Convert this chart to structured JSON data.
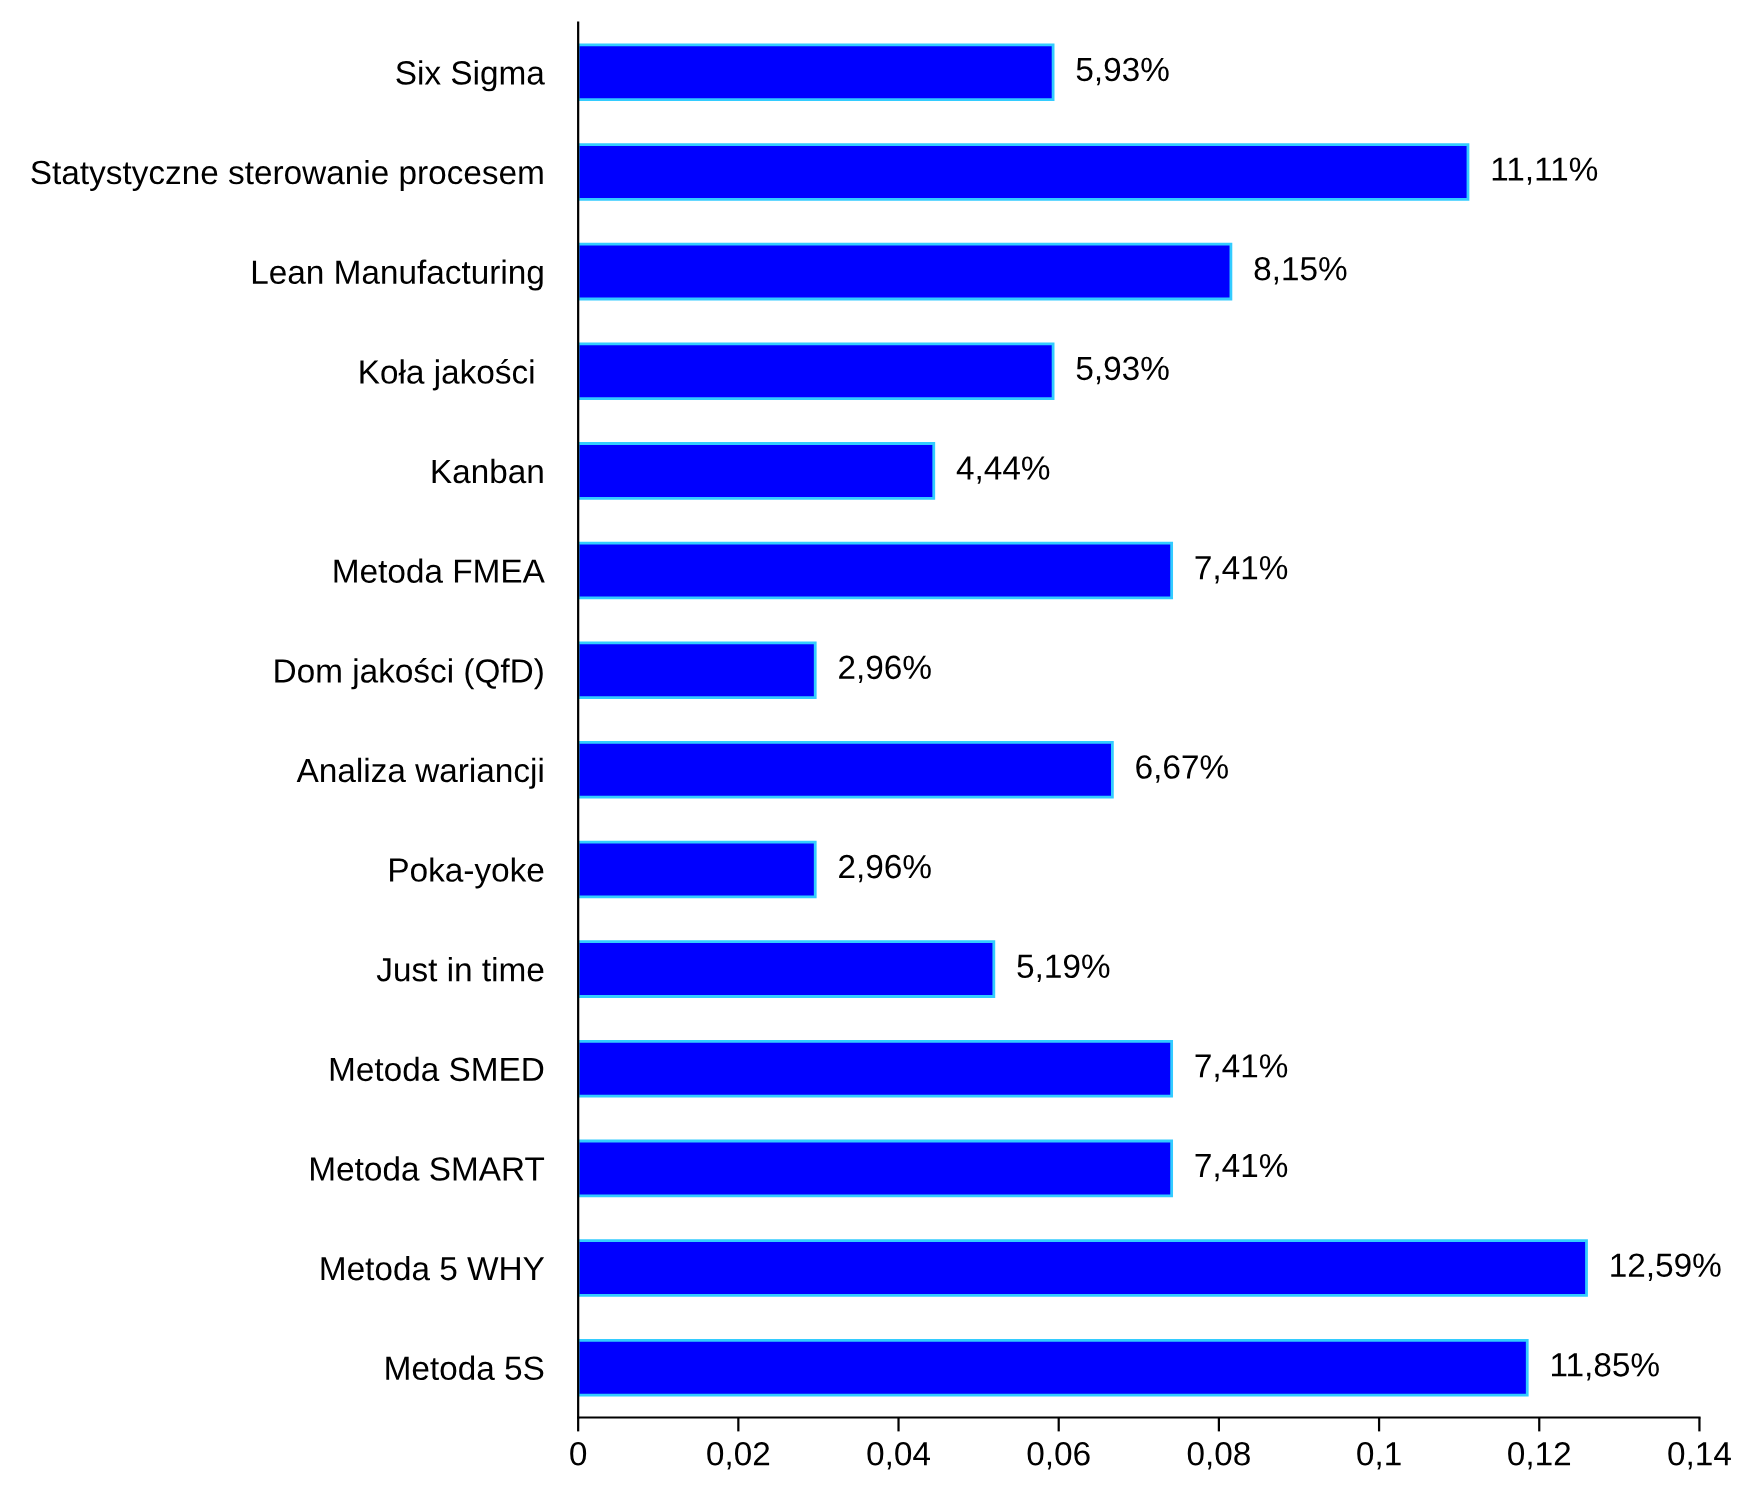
{
  "chart_data": {
    "type": "bar",
    "orientation": "horizontal",
    "categories": [
      "Six Sigma",
      "Statystyczne sterowanie procesem",
      "Lean Manufacturing",
      "Koła jakości ",
      "Kanban",
      "Metoda FMEA",
      "Dom jakości (QfD)",
      "Analiza wariancji",
      "Poka-yoke",
      "Just in time",
      "Metoda SMED",
      "Metoda SMART",
      "Metoda 5 WHY",
      "Metoda 5S"
    ],
    "series": [
      {
        "color": "#0000ff",
        "values": [
          0.0593,
          0.1111,
          0.0815,
          0.0593,
          0.0444,
          0.0741,
          0.0296,
          0.0667,
          0.0296,
          0.0519,
          0.0741,
          0.0741,
          0.1259,
          0.1185
        ],
        "value_labels": [
          "5,93%",
          "11,11%",
          "8,15%",
          "5,93%",
          "4,44%",
          "7,41%",
          "2,96%",
          "6,67%",
          "2,96%",
          "5,19%",
          "7,41%",
          "7,41%",
          "12,59%",
          "11,85%"
        ]
      }
    ],
    "xlim": [
      0,
      0.14
    ],
    "xticks": [
      0,
      {
        "value": 0.02,
        "label": "0,02"
      },
      {
        "value": 0.04,
        "label": "0,04"
      },
      {
        "value": 0.06,
        "label": "0,06"
      },
      {
        "value": 0.08,
        "label": "0,08"
      },
      {
        "value": 0.1,
        "label": "0,1"
      },
      {
        "value": 0.12,
        "label": "0,12"
      },
      {
        "value": 0.14,
        "label": "0,14"
      }
    ],
    "grid": false
  }
}
